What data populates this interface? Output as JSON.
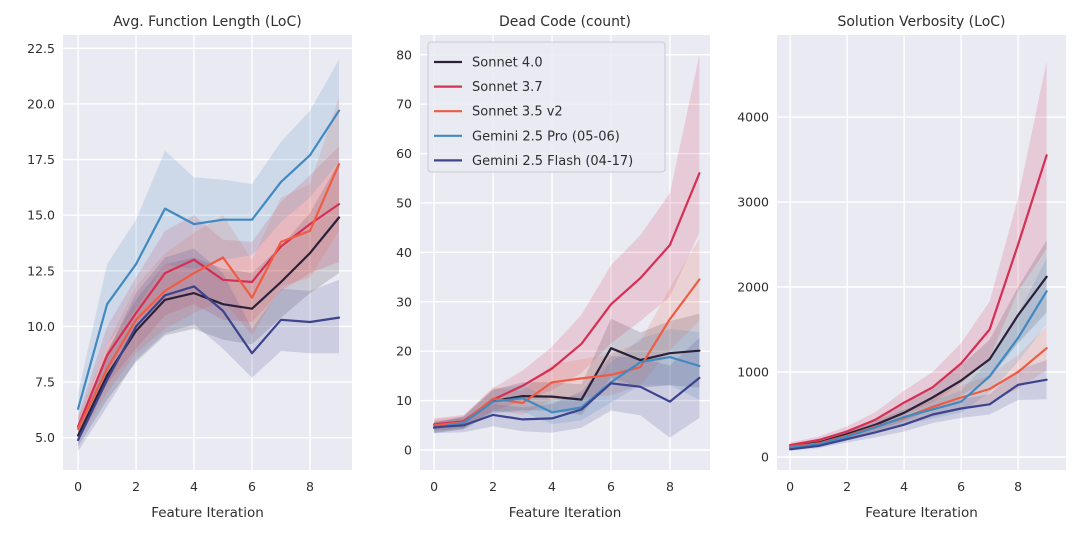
{
  "figure": {
    "background": "#ffffff",
    "plot_background": "#eaeaf2",
    "grid_color": "#ffffff",
    "text_color": "#2f2f2f"
  },
  "chart_data": [
    {
      "type": "line",
      "title": "Avg. Function Length (LoC)",
      "xlabel": "Feature Iteration",
      "ylabel": "",
      "grid": true,
      "x": [
        0,
        1,
        2,
        3,
        4,
        5,
        6,
        7,
        8,
        9
      ],
      "xlim": [
        -0.52,
        9.45
      ],
      "ylim": [
        3.55,
        23.1
      ],
      "xticks": {
        "values": [
          0,
          2,
          4,
          6,
          8
        ],
        "labels": [
          "0",
          "2",
          "4",
          "6",
          "8"
        ]
      },
      "yticks": {
        "values": [
          5,
          7.5,
          10,
          12.5,
          15,
          17.5,
          20,
          22.5
        ],
        "labels": [
          "5.0",
          "7.5",
          "10.0",
          "12.5",
          "15.0",
          "17.5",
          "20.0",
          "22.5"
        ]
      },
      "series": [
        {
          "id": "sonnet-4-0",
          "name": "Sonnet 4.0",
          "color": "#2a2139",
          "values": [
            5.1,
            7.8,
            9.8,
            11.2,
            11.5,
            11.0,
            10.8,
            12.0,
            13.3,
            14.9
          ],
          "band_lower": [
            4.6,
            6.7,
            8.4,
            9.6,
            9.9,
            9.4,
            9.2,
            10.4,
            11.5,
            12.4
          ],
          "band_upper": [
            5.6,
            8.9,
            11.2,
            12.8,
            13.1,
            12.6,
            12.4,
            13.6,
            15.1,
            17.4
          ]
        },
        {
          "id": "sonnet-3-7",
          "name": "Sonnet 3.7",
          "color": "#d62f55",
          "values": [
            5.5,
            8.7,
            10.6,
            12.4,
            13.0,
            12.1,
            12.0,
            13.6,
            14.6,
            15.5
          ],
          "band_lower": [
            5.0,
            7.4,
            9.0,
            10.5,
            11.0,
            10.3,
            10.2,
            11.6,
            12.4,
            12.9
          ],
          "band_upper": [
            6.0,
            10.0,
            12.2,
            14.3,
            15.0,
            13.9,
            13.8,
            15.6,
            16.8,
            18.1
          ]
        },
        {
          "id": "sonnet-3-5-v2",
          "name": "Sonnet 3.5 v2",
          "color": "#ee5c44",
          "values": [
            5.4,
            8.1,
            10.3,
            11.6,
            12.4,
            13.1,
            11.3,
            13.8,
            14.3,
            17.3
          ],
          "band_lower": [
            4.9,
            7.0,
            8.8,
            9.9,
            10.6,
            11.2,
            9.6,
            11.8,
            12.2,
            14.3
          ],
          "band_upper": [
            5.9,
            9.2,
            11.8,
            13.3,
            14.2,
            15.0,
            13.0,
            15.8,
            16.4,
            20.3
          ]
        },
        {
          "id": "gemini-2-5-pro",
          "name": "Gemini 2.5 Pro (05-06)",
          "color": "#4289c0",
          "values": [
            6.3,
            11.0,
            12.8,
            15.3,
            14.6,
            14.8,
            14.8,
            16.5,
            17.7,
            19.7
          ],
          "band_lower": [
            5.6,
            9.2,
            10.8,
            12.8,
            12.6,
            13.0,
            13.2,
            14.7,
            15.8,
            17.4
          ],
          "band_upper": [
            7.0,
            12.8,
            14.8,
            17.9,
            16.7,
            16.6,
            16.4,
            18.3,
            19.7,
            22.0
          ]
        },
        {
          "id": "gemini-2-5-flash",
          "name": "Gemini 2.5 Flash (04-17)",
          "color": "#3c448e",
          "values": [
            4.9,
            7.6,
            10.0,
            11.4,
            11.8,
            10.7,
            8.8,
            10.3,
            10.2,
            10.4
          ],
          "band_lower": [
            4.4,
            6.4,
            8.5,
            9.7,
            10.1,
            9.0,
            7.7,
            8.9,
            8.8,
            8.8
          ],
          "band_upper": [
            5.4,
            8.8,
            11.5,
            13.1,
            13.5,
            12.4,
            9.9,
            11.7,
            11.6,
            12.1
          ]
        }
      ]
    },
    {
      "type": "line",
      "title": "Dead Code (count)",
      "xlabel": "Feature Iteration",
      "ylabel": "",
      "grid": true,
      "legend": {
        "location": "upper left"
      },
      "x": [
        0,
        1,
        2,
        3,
        4,
        5,
        6,
        7,
        8,
        9
      ],
      "xlim": [
        -0.48,
        9.36
      ],
      "ylim": [
        -4.05,
        84.0
      ],
      "xticks": {
        "values": [
          0,
          2,
          4,
          6,
          8
        ],
        "labels": [
          "0",
          "2",
          "4",
          "6",
          "8"
        ]
      },
      "yticks": {
        "values": [
          0,
          10,
          20,
          30,
          40,
          50,
          60,
          70,
          80
        ],
        "labels": [
          "0",
          "10",
          "20",
          "30",
          "40",
          "50",
          "60",
          "70",
          "80"
        ]
      },
      "series": [
        {
          "id": "sonnet-4-0",
          "name": "Sonnet 4.0",
          "color": "#2a2139",
          "values": [
            4.5,
            5.5,
            9.9,
            10.9,
            10.8,
            10.2,
            20.6,
            18.2,
            19.6,
            20.1
          ],
          "band_lower": [
            3.5,
            4.2,
            7.6,
            8.1,
            7.9,
            7.1,
            14.6,
            12.6,
            13.1,
            12.6
          ],
          "band_upper": [
            5.5,
            6.8,
            12.2,
            13.7,
            13.7,
            13.3,
            26.6,
            23.8,
            26.1,
            27.6
          ]
        },
        {
          "id": "sonnet-3-7",
          "name": "Sonnet 3.7",
          "color": "#d62f55",
          "values": [
            5.2,
            5.8,
            10.2,
            13.0,
            16.5,
            21.5,
            29.5,
            34.8,
            41.5,
            56.0
          ],
          "band_lower": [
            4.0,
            4.5,
            7.9,
            9.9,
            12.1,
            15.6,
            21.6,
            26.1,
            31.0,
            44.0
          ],
          "band_upper": [
            6.4,
            7.1,
            12.5,
            16.1,
            20.9,
            27.4,
            37.4,
            43.5,
            52.0,
            80.0
          ]
        },
        {
          "id": "sonnet-3-5-v2",
          "name": "Sonnet 3.5 v2",
          "color": "#ee5c44",
          "values": [
            5.0,
            5.6,
            10.4,
            9.5,
            13.7,
            14.5,
            15.2,
            16.8,
            26.5,
            34.5
          ],
          "band_lower": [
            3.8,
            4.4,
            8.1,
            7.1,
            10.1,
            10.6,
            11.1,
            13.1,
            20.2,
            26.2
          ],
          "band_upper": [
            6.2,
            6.8,
            12.7,
            11.9,
            17.3,
            18.4,
            19.3,
            21.9,
            32.8,
            42.8
          ]
        },
        {
          "id": "gemini-2-5-pro",
          "name": "Gemini 2.5 Pro (05-06)",
          "color": "#4289c0",
          "values": [
            4.5,
            5.5,
            9.8,
            10.5,
            7.6,
            8.6,
            13.7,
            17.8,
            18.8,
            17.0
          ],
          "band_lower": [
            3.4,
            4.2,
            7.4,
            7.8,
            5.2,
            6.0,
            9.6,
            13.1,
            13.1,
            10.2
          ],
          "band_upper": [
            5.6,
            6.8,
            12.2,
            13.2,
            10.0,
            11.2,
            17.8,
            22.5,
            24.5,
            23.8
          ]
        },
        {
          "id": "gemini-2-5-flash",
          "name": "Gemini 2.5 Flash (04-17)",
          "color": "#3c448e",
          "values": [
            4.6,
            5.0,
            7.1,
            6.2,
            6.4,
            8.2,
            13.5,
            12.8,
            9.8,
            14.6
          ],
          "band_lower": [
            3.4,
            3.6,
            4.8,
            3.8,
            3.5,
            4.5,
            8.0,
            7.0,
            2.5,
            6.5
          ],
          "band_upper": [
            5.8,
            6.4,
            9.4,
            8.6,
            9.3,
            11.9,
            19.0,
            18.6,
            17.1,
            22.7
          ]
        }
      ]
    },
    {
      "type": "line",
      "title": "Solution Verbosity (LoC)",
      "xlabel": "Feature Iteration",
      "ylabel": "",
      "grid": true,
      "x": [
        0,
        1,
        2,
        3,
        4,
        5,
        6,
        7,
        8,
        9
      ],
      "xlim": [
        -0.46,
        9.68
      ],
      "ylim": [
        -153,
        4965
      ],
      "xticks": {
        "values": [
          0,
          2,
          4,
          6,
          8
        ],
        "labels": [
          "0",
          "2",
          "4",
          "6",
          "8"
        ]
      },
      "yticks": {
        "values": [
          0,
          1000,
          2000,
          3000,
          4000
        ],
        "labels": [
          "0",
          "1000",
          "2000",
          "3000",
          "4000"
        ]
      },
      "series": [
        {
          "id": "sonnet-4-0",
          "name": "Sonnet 4.0",
          "color": "#2a2139",
          "values": [
            120,
            170,
            270,
            380,
            520,
            700,
            900,
            1150,
            1670,
            2120
          ],
          "band_lower": [
            100,
            140,
            220,
            310,
            420,
            560,
            720,
            920,
            1340,
            1700
          ],
          "band_upper": [
            140,
            200,
            320,
            450,
            620,
            840,
            1080,
            1380,
            2000,
            2550
          ]
        },
        {
          "id": "sonnet-3-7",
          "name": "Sonnet 3.7",
          "color": "#d62f55",
          "values": [
            140,
            200,
            300,
            440,
            640,
            820,
            1100,
            1500,
            2500,
            3550
          ],
          "band_lower": [
            110,
            160,
            240,
            350,
            500,
            640,
            860,
            1170,
            1950,
            2450
          ],
          "band_upper": [
            170,
            240,
            360,
            530,
            780,
            1000,
            1340,
            1830,
            3050,
            4650
          ]
        },
        {
          "id": "sonnet-3-5-v2",
          "name": "Sonnet 3.5 v2",
          "color": "#ee5c44",
          "values": [
            120,
            160,
            250,
            360,
            460,
            590,
            700,
            800,
            1000,
            1280
          ],
          "band_lower": [
            100,
            130,
            200,
            290,
            370,
            470,
            560,
            640,
            800,
            1020
          ],
          "band_upper": [
            140,
            190,
            300,
            430,
            550,
            710,
            840,
            960,
            1200,
            1540
          ]
        },
        {
          "id": "gemini-2-5-pro",
          "name": "Gemini 2.5 Pro (05-06)",
          "color": "#4289c0",
          "values": [
            110,
            150,
            240,
            350,
            470,
            560,
            650,
            950,
            1400,
            1950
          ],
          "band_lower": [
            90,
            120,
            190,
            280,
            380,
            450,
            520,
            760,
            1120,
            1560
          ],
          "band_upper": [
            130,
            180,
            290,
            420,
            560,
            670,
            780,
            1140,
            1680,
            2340
          ]
        },
        {
          "id": "gemini-2-5-flash",
          "name": "Gemini 2.5 Flash (04-17)",
          "color": "#3c448e",
          "values": [
            90,
            130,
            210,
            290,
            380,
            500,
            570,
            620,
            850,
            910
          ],
          "band_lower": [
            75,
            105,
            170,
            230,
            300,
            400,
            460,
            500,
            670,
            680
          ],
          "band_upper": [
            105,
            155,
            250,
            350,
            460,
            600,
            680,
            740,
            1030,
            1140
          ]
        }
      ]
    }
  ]
}
